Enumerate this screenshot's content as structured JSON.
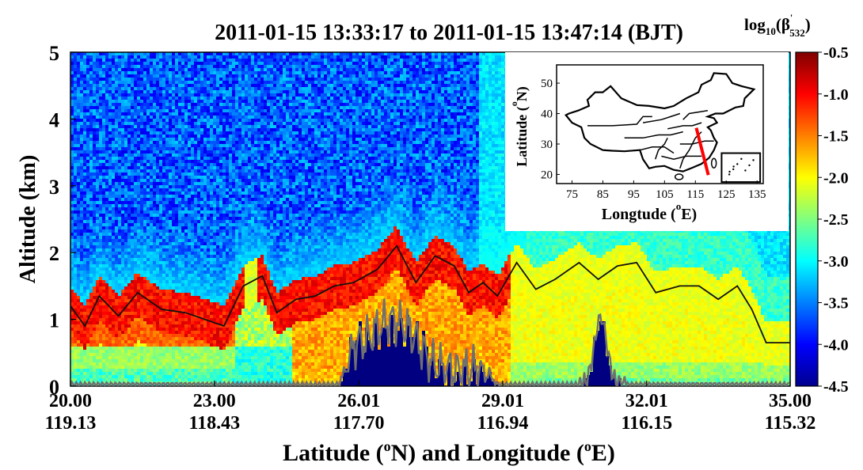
{
  "chart_data": {
    "type": "heatmap",
    "title": "2011-01-15 13:33:17 to 2011-01-15 13:47:14 (BJT)",
    "ylabel": "Altitude (km)",
    "xlabel": "Latitude (°N) and Longitude (°E)",
    "ylim": [
      0,
      5
    ],
    "y_ticks": [
      "0",
      "1",
      "2",
      "3",
      "4",
      "5"
    ],
    "x_ticks": [
      {
        "lat": "20.00",
        "lon": "119.13"
      },
      {
        "lat": "23.00",
        "lon": "118.43"
      },
      {
        "lat": "26.01",
        "lon": "117.70"
      },
      {
        "lat": "29.01",
        "lon": "116.94"
      },
      {
        "lat": "32.01",
        "lon": "116.15"
      },
      {
        "lat": "35.00",
        "lon": "115.32"
      }
    ],
    "colorbar": {
      "label_main": "log",
      "label_sub": "10",
      "label_beta": "(β",
      "label_beta_sub": "532",
      "label_close": ")",
      "range": [
        -4.5,
        -0.5
      ],
      "ticks": [
        "-0.5",
        "-1.0",
        "-1.5",
        "-2.0",
        "-2.5",
        "-3.0",
        "-3.5",
        "-4.0",
        "-4.5"
      ]
    },
    "layer_top_line": {
      "name": "black line",
      "color": "#111111",
      "x_lat": [
        20.0,
        20.3,
        20.6,
        21.0,
        21.4,
        21.9,
        22.4,
        22.8,
        23.2,
        23.6,
        24.0,
        24.3,
        24.7,
        25.1,
        25.5,
        25.9,
        26.4,
        26.8,
        27.2,
        27.6,
        28.0,
        28.3,
        28.6,
        28.9,
        29.3,
        29.7,
        30.1,
        30.6,
        31.0,
        31.4,
        31.8,
        32.2,
        32.7,
        33.1,
        33.5,
        33.9,
        34.2,
        34.5,
        35.0
      ],
      "y_km": [
        1.2,
        0.9,
        1.35,
        1.05,
        1.4,
        1.15,
        1.1,
        1.0,
        0.9,
        1.5,
        1.65,
        1.1,
        1.3,
        1.35,
        1.5,
        1.55,
        1.75,
        2.1,
        1.55,
        1.95,
        1.8,
        1.4,
        1.55,
        1.35,
        1.85,
        1.45,
        1.6,
        1.85,
        1.6,
        1.8,
        1.85,
        1.4,
        1.5,
        1.5,
        1.3,
        1.5,
        1.15,
        0.65,
        0.65
      ]
    },
    "surface_line": {
      "name": "gray line",
      "color": "#707070"
    }
  },
  "inset_map": {
    "xlabel": "Longtude (°E)",
    "ylabel": "Latitude (°N)",
    "x_ticks": [
      "75",
      "85",
      "95",
      "105",
      "115",
      "125",
      "135"
    ],
    "y_ticks": [
      "20",
      "30",
      "40",
      "50"
    ],
    "track_color": "#ff0000"
  }
}
